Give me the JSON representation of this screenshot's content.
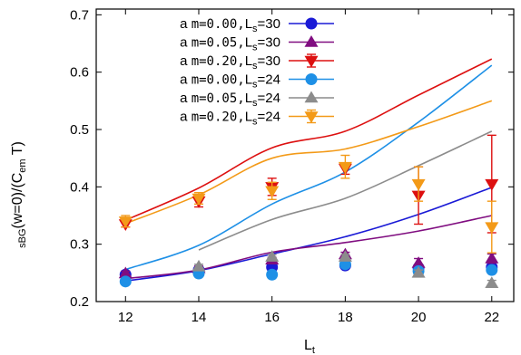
{
  "chart_data": {
    "type": "line",
    "xlabel_main": "L",
    "xlabel_sub": "t",
    "ylabel_parts": {
      "pre_sub": "s",
      "sub1": "BG",
      "mid": "(w=0)/(C",
      "sub2": "em",
      "post": " T)"
    },
    "xlim": [
      11.2,
      22.6
    ],
    "ylim": [
      0.2,
      0.71
    ],
    "xticks": [
      12,
      14,
      16,
      18,
      20,
      22
    ],
    "yticks": [
      0.2,
      0.3,
      0.4,
      0.5,
      0.6,
      0.7
    ],
    "ytick_labels": [
      "0.2",
      "0.3",
      "0.4",
      "0.5",
      "0.6",
      "0.7"
    ],
    "legend_position": "top-left",
    "series": [
      {
        "legend_prefix": "a ",
        "legend_m": "m=0.00,",
        "legend_L": "L",
        "legend_sub": "s",
        "legend_val": "=30",
        "color": "#1a1ad6",
        "marker": "circle",
        "points": [
          {
            "x": 12,
            "y": 0.247,
            "err": 0.004
          },
          {
            "x": 14,
            "y": 0.255,
            "err": 0.004
          },
          {
            "x": 16,
            "y": 0.26,
            "err": 0.004
          },
          {
            "x": 18,
            "y": 0.263,
            "err": 0.004
          },
          {
            "x": 20,
            "y": 0.259,
            "err": 0.004
          },
          {
            "x": 22,
            "y": 0.26,
            "err": 0.005
          }
        ],
        "curve_x": [
          12,
          14,
          16,
          18,
          20,
          22
        ],
        "curve_y": [
          0.236,
          0.254,
          0.283,
          0.313,
          0.352,
          0.399
        ]
      },
      {
        "legend_prefix": "a ",
        "legend_m": "m=0.05,",
        "legend_L": "L",
        "legend_sub": "s",
        "legend_val": "=30",
        "color": "#800d80",
        "marker": "triangle-up",
        "points": [
          {
            "x": 12,
            "y": 0.249,
            "err": 0.004
          },
          {
            "x": 14,
            "y": 0.258,
            "err": 0.004
          },
          {
            "x": 16,
            "y": 0.273,
            "err": 0.004
          },
          {
            "x": 18,
            "y": 0.282,
            "err": 0.004
          },
          {
            "x": 20,
            "y": 0.267,
            "err": 0.008
          },
          {
            "x": 22,
            "y": 0.275,
            "err": 0.008
          }
        ],
        "curve_x": [
          12,
          14,
          16,
          18,
          20,
          22
        ],
        "curve_y": [
          0.24,
          0.255,
          0.286,
          0.303,
          0.323,
          0.35
        ]
      },
      {
        "legend_prefix": "a ",
        "legend_m": "m=0.20,",
        "legend_L": "L",
        "legend_sub": "s",
        "legend_val": "=30",
        "color": "#dd1010",
        "marker": "triangle-down",
        "points": [
          {
            "x": 12,
            "y": 0.335,
            "err": 0.005
          },
          {
            "x": 14,
            "y": 0.375,
            "err": 0.01
          },
          {
            "x": 16,
            "y": 0.4,
            "err": 0.015
          },
          {
            "x": 18,
            "y": 0.432,
            "err": 0.01
          },
          {
            "x": 20,
            "y": 0.385,
            "err": 0.05
          },
          {
            "x": 22,
            "y": 0.405,
            "err": 0.085
          }
        ],
        "curve_x": [
          12,
          14,
          16,
          18,
          20,
          22
        ],
        "curve_y": [
          0.342,
          0.398,
          0.468,
          0.497,
          0.56,
          0.623
        ]
      },
      {
        "legend_prefix": "a ",
        "legend_m": "m=0.00,",
        "legend_L": "L",
        "legend_sub": "s",
        "legend_val": "=24",
        "color": "#1e90e6",
        "marker": "circle",
        "points": [
          {
            "x": 12,
            "y": 0.235,
            "err": 0.003
          },
          {
            "x": 14,
            "y": 0.249,
            "err": 0.003
          },
          {
            "x": 16,
            "y": 0.247,
            "err": 0.003
          },
          {
            "x": 18,
            "y": 0.265,
            "err": 0.004
          },
          {
            "x": 20,
            "y": 0.253,
            "err": 0.004
          },
          {
            "x": 22,
            "y": 0.255,
            "err": 0.004
          }
        ],
        "curve_x": [
          12,
          14,
          16,
          18,
          20,
          22
        ],
        "curve_y": [
          0.256,
          0.298,
          0.37,
          0.426,
          0.513,
          0.612
        ]
      },
      {
        "legend_prefix": "a ",
        "legend_m": "m=0.05,",
        "legend_L": "L",
        "legend_sub": "s",
        "legend_val": "=24",
        "color": "#8c8c8c",
        "marker": "triangle-up",
        "points": [
          {
            "x": 14,
            "y": 0.261,
            "err": 0.004
          },
          {
            "x": 16,
            "y": 0.278,
            "err": 0.004
          },
          {
            "x": 18,
            "y": 0.278,
            "err": 0.004
          },
          {
            "x": 20,
            "y": 0.25,
            "err": 0.005
          },
          {
            "x": 22,
            "y": 0.232,
            "err": 0.005
          }
        ],
        "curve_x": [
          14,
          16,
          18,
          20,
          22
        ],
        "curve_y": [
          0.29,
          0.343,
          0.38,
          0.437,
          0.497
        ]
      },
      {
        "legend_prefix": "a ",
        "legend_m": "m=0.20,",
        "legend_L": "L",
        "legend_sub": "s",
        "legend_val": "=24",
        "color": "#f39a18",
        "marker": "triangle-down",
        "points": [
          {
            "x": 12,
            "y": 0.34,
            "err": 0.01
          },
          {
            "x": 14,
            "y": 0.38,
            "err": 0.01
          },
          {
            "x": 16,
            "y": 0.393,
            "err": 0.015
          },
          {
            "x": 18,
            "y": 0.435,
            "err": 0.02
          },
          {
            "x": 20,
            "y": 0.405,
            "err": 0.03
          },
          {
            "x": 22,
            "y": 0.33,
            "err": 0.045
          }
        ],
        "curve_x": [
          12,
          14,
          16,
          18,
          20,
          22
        ],
        "curve_y": [
          0.336,
          0.386,
          0.45,
          0.466,
          0.505,
          0.55
        ]
      }
    ]
  }
}
